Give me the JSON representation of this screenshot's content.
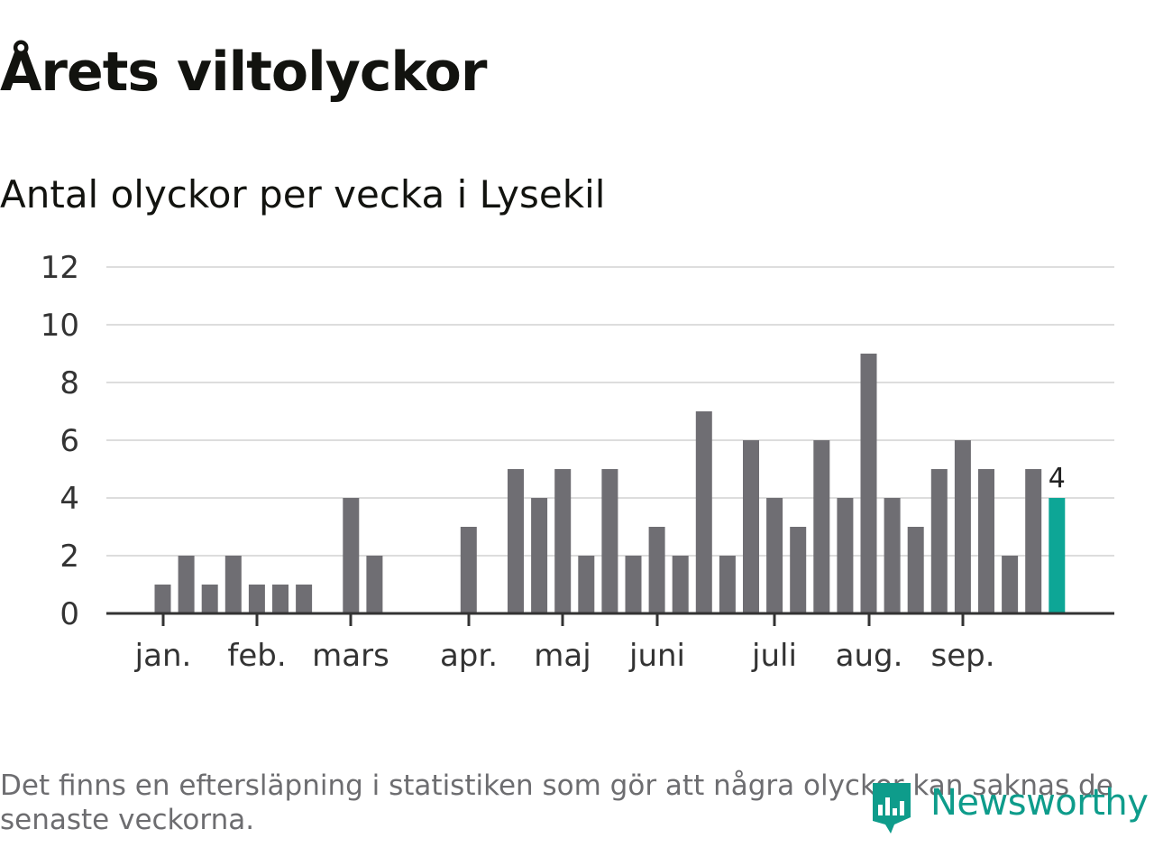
{
  "title": "Årets viltolyckor",
  "subtitle": "Antal olyckor per vecka i Lysekil",
  "footnote": "Det finns en eftersläpning i statistiken som gör att några olyckor kan saknas de senaste veckorna.",
  "logo": {
    "text": "Newsworthy",
    "icon": "bar-chart-bubble-icon"
  },
  "colors": {
    "bar": "#6f6e73",
    "highlight": "#0da696",
    "grid": "#dddddd",
    "axis": "#333333",
    "text": "#333333",
    "brand": "#0e9c8b"
  },
  "chart_data": {
    "type": "bar",
    "title": "Antal olyckor per vecka i Lysekil",
    "xlabel": "",
    "ylabel": "",
    "ylim": [
      0,
      12
    ],
    "yticks": [
      0,
      2,
      4,
      6,
      8,
      10,
      12
    ],
    "grid": true,
    "weeks": [
      1,
      2,
      3,
      4,
      5,
      6,
      7,
      8,
      9,
      10,
      11,
      12,
      13,
      14,
      15,
      16,
      17,
      18,
      19,
      20,
      21,
      22,
      23,
      24,
      25,
      26,
      27,
      28,
      29,
      30,
      31,
      32,
      33,
      34,
      35,
      36,
      37,
      38,
      39
    ],
    "values": [
      1,
      2,
      1,
      2,
      1,
      1,
      1,
      0,
      4,
      2,
      0,
      0,
      0,
      3,
      0,
      5,
      4,
      5,
      2,
      5,
      2,
      3,
      2,
      7,
      2,
      6,
      4,
      3,
      6,
      4,
      9,
      4,
      3,
      5,
      6,
      5,
      2,
      5,
      4
    ],
    "month_ticks": [
      {
        "label": "jan.",
        "week": 1.5
      },
      {
        "label": "feb.",
        "week": 5.5
      },
      {
        "label": "mars",
        "week": 9.5
      },
      {
        "label": "apr.",
        "week": 14.5
      },
      {
        "label": "maj",
        "week": 18.5
      },
      {
        "label": "juni",
        "week": 22.5
      },
      {
        "label": "juli",
        "week": 27.5
      },
      {
        "label": "aug.",
        "week": 31.5
      },
      {
        "label": "sep.",
        "week": 35.5
      }
    ],
    "highlight": {
      "week": 39,
      "value": 4,
      "label": "4"
    }
  }
}
